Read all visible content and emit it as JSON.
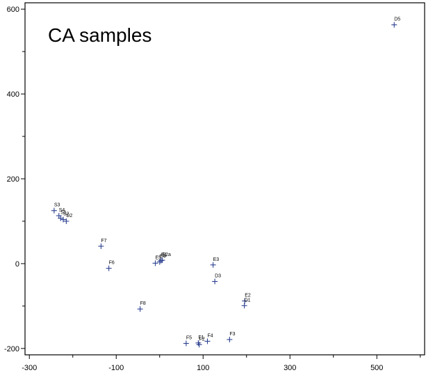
{
  "chart_data": {
    "type": "scatter",
    "title": "CA  samples",
    "xlabel": "",
    "ylabel": "",
    "xlim": [
      -310,
      610
    ],
    "ylim": [
      -215,
      615
    ],
    "x_ticks": [
      -300,
      -100,
      100,
      300,
      500
    ],
    "x_ticks_minor": [
      -200,
      0,
      200,
      400,
      600
    ],
    "y_ticks": [
      -200,
      0,
      200,
      400,
      600
    ],
    "y_ticks_minor": [
      -100,
      100,
      300,
      500
    ],
    "x_tick_labels": [
      "-300",
      "-100",
      "100",
      "300",
      "500"
    ],
    "y_tick_labels": [
      "-200",
      "0",
      "200",
      "400",
      "600"
    ],
    "marker": "plus",
    "marker_color": "#2b3f8f",
    "grid": false,
    "points": [
      {
        "label": "D5",
        "x": 540,
        "y": 563
      },
      {
        "label": "S3",
        "x": -243,
        "y": 125
      },
      {
        "label": "S4",
        "x": -232,
        "y": 113
      },
      {
        "label": "S1",
        "x": -228,
        "y": 107
      },
      {
        "label": "S2",
        "x": -222,
        "y": 104
      },
      {
        "label": "D2",
        "x": -215,
        "y": 100
      },
      {
        "label": "F7",
        "x": -135,
        "y": 41
      },
      {
        "label": "F6",
        "x": -117,
        "y": -11
      },
      {
        "label": "E5",
        "x": -10,
        "y": 1
      },
      {
        "label": "E4",
        "x": 0,
        "y": 4
      },
      {
        "label": "E1",
        "x": 3,
        "y": 7
      },
      {
        "label": "E2a",
        "x": 6,
        "y": 8
      },
      {
        "label": "E3",
        "x": 123,
        "y": -3
      },
      {
        "label": "D3",
        "x": 127,
        "y": -42
      },
      {
        "label": "E2",
        "x": 196,
        "y": -88
      },
      {
        "label": "D1",
        "x": 195,
        "y": -99
      },
      {
        "label": "F8",
        "x": -45,
        "y": -107
      },
      {
        "label": "F3",
        "x": 161,
        "y": -179
      },
      {
        "label": "F5",
        "x": 61,
        "y": -188
      },
      {
        "label": "F1",
        "x": 89,
        "y": -187
      },
      {
        "label": "F2",
        "x": 91,
        "y": -191
      },
      {
        "label": "F4",
        "x": 110,
        "y": -183
      }
    ]
  }
}
